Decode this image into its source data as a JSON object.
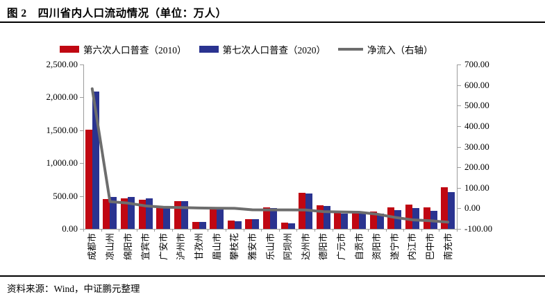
{
  "figure": {
    "title": "图 2　四川省内人口流动情况（单位：万人）",
    "source": "资料来源：Wind，中证鹏元整理"
  },
  "chart_data": {
    "type": "bar",
    "subtype": "grouped-bar-with-line-on-secondary-axis",
    "title": "图 2　四川省内人口流动情况（单位：万人）",
    "unit": "万人",
    "grid": false,
    "legend_position": "top",
    "categories": [
      "成都市",
      "凉山州",
      "绵阳市",
      "宜宾市",
      "广安市",
      "泸州市",
      "甘孜州",
      "眉山市",
      "攀枝花",
      "雅安市",
      "乐山市",
      "阿坝州",
      "达州市",
      "德阳市",
      "广元市",
      "自贡市",
      "资阳市",
      "遂宁市",
      "内江市",
      "巴中市",
      "南充市"
    ],
    "series": [
      {
        "name": "第六次人口普查（2010）",
        "type": "bar",
        "axis": "left",
        "color": "#C00712",
        "values": [
          1511.9,
          453.3,
          461.4,
          447.2,
          320.2,
          421.9,
          109.2,
          295.0,
          121.4,
          150.7,
          323.6,
          89.9,
          546.8,
          361.6,
          248.4,
          267.9,
          259.1,
          325.2,
          370.3,
          331.6,
          627.9
        ]
      },
      {
        "name": "第七次人口普查（2020）",
        "type": "bar",
        "axis": "left",
        "color": "#2A3390",
        "values": [
          2093.8,
          485.8,
          486.9,
          458.9,
          325.5,
          425.4,
          110.7,
          295.5,
          121.2,
          143.5,
          316.0,
          82.3,
          538.5,
          345.6,
          230.6,
          248.9,
          230.9,
          281.4,
          314.1,
          271.2,
          560.8
        ]
      },
      {
        "name": "净流入（右轴）",
        "type": "line",
        "axis": "right",
        "color": "#6D6D6D",
        "values": [
          581.9,
          32.5,
          25.5,
          11.7,
          5.3,
          3.5,
          1.5,
          0.5,
          -0.2,
          -7.2,
          -7.6,
          -7.6,
          -8.3,
          -16.0,
          -17.8,
          -19.0,
          -28.2,
          -43.8,
          -56.2,
          -60.4,
          -67.1
        ]
      }
    ],
    "left_axis": {
      "min": 0,
      "max": 2500,
      "step": 500,
      "tick_labels": [
        "2,500.00",
        "2,000.00",
        "1,500.00",
        "1,000.00",
        "500.00",
        "0.00"
      ]
    },
    "right_axis": {
      "min": -100,
      "max": 700,
      "step": 100,
      "tick_labels": [
        "700.00",
        "600.00",
        "500.00",
        "400.00",
        "300.00",
        "200.00",
        "100.00",
        "0.00",
        "-100.00"
      ]
    },
    "axis_color": "#9B9B9B"
  }
}
